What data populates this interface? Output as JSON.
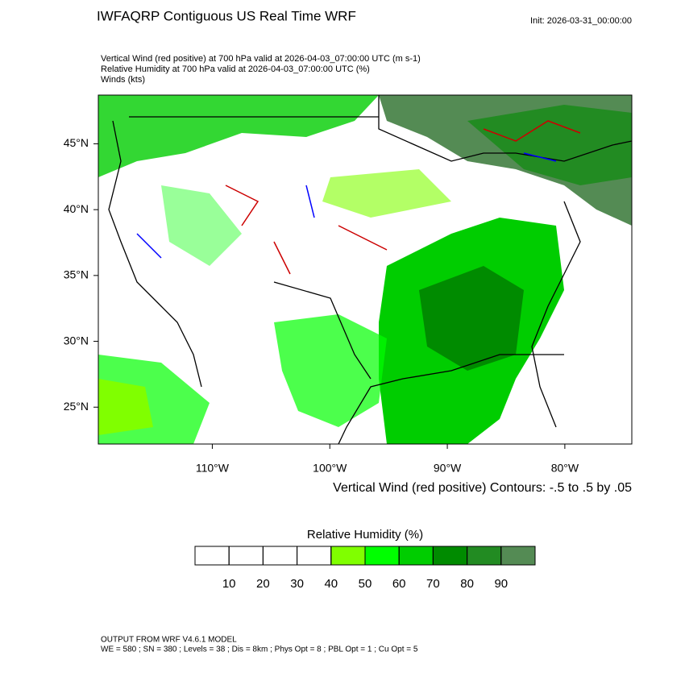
{
  "chart_data": {
    "type": "map",
    "title": "IWFAQRP Contiguous US Real Time WRF",
    "init": "Init: 2026-03-31_00:00:00",
    "subtitles": [
      "Vertical Wind (red positive) at 700 hPa valid at 2026-04-03_07:00:00 UTC   (m s-1)",
      "Relative Humidity at 700 hPa valid at 2026-04-03_07:00:00 UTC   (%)",
      "Winds   (kts)"
    ],
    "xlim": [
      -119.7,
      -74.3
    ],
    "ylim": [
      22.2,
      48.7
    ],
    "xticks": [
      {
        "value": -110,
        "label": "110°W"
      },
      {
        "value": -100,
        "label": "100°W"
      },
      {
        "value": -90,
        "label": "90°W"
      },
      {
        "value": -80,
        "label": "80°W"
      }
    ],
    "yticks": [
      {
        "value": 25,
        "label": "25°N"
      },
      {
        "value": 30,
        "label": "30°N"
      },
      {
        "value": 35,
        "label": "35°N"
      },
      {
        "value": 40,
        "label": "40°N"
      },
      {
        "value": 45,
        "label": "45°N"
      }
    ],
    "contour_note": "Vertical Wind (red positive) Contours: -.5 to .5 by .05",
    "colorbar": {
      "title": "Relative Humidity  (%)",
      "levels": [
        10,
        20,
        30,
        40,
        50,
        60,
        70,
        80,
        90
      ],
      "colors": [
        "#ffffff",
        "#ffffff",
        "#ffffff",
        "#ffffff",
        "#80ff00",
        "#00ff00",
        "#00cd00",
        "#008b00",
        "#228b22",
        "#548b54"
      ]
    },
    "footer": [
      "OUTPUT FROM WRF V4.6.1 MODEL",
      "WE = 580 ; SN = 380 ; Levels = 38 ; Dis = 8km ; Phys Opt = 8 ; PBL Opt = 1 ; Cu Opt = 5"
    ]
  }
}
